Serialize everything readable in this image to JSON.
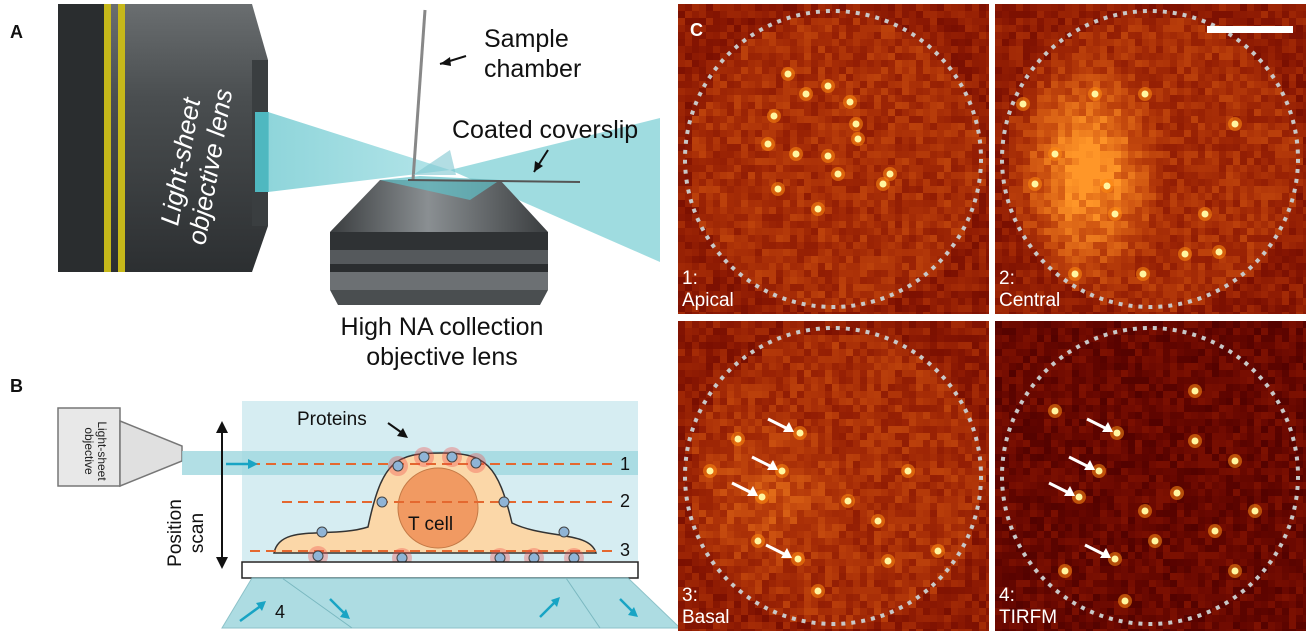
{
  "panels": {
    "a": {
      "letter": "A",
      "light_sheet_objective": [
        "Light-sheet",
        "objective lens"
      ],
      "sample_chamber": [
        "Sample",
        "chamber"
      ],
      "coated_coverslip": "Coated coverslip",
      "collection_objective": [
        "High NA collection",
        "objective lens"
      ]
    },
    "b": {
      "letter": "B",
      "objective_label": [
        "Light-sheet",
        "objective"
      ],
      "proteins": "Proteins",
      "t_cell": "T cell",
      "position_scan": [
        "Position",
        "scan"
      ],
      "planes": [
        "1",
        "2",
        "3"
      ],
      "tirf_plane": "4"
    },
    "c": {
      "letter": "C",
      "tiles": [
        {
          "number": "1:",
          "name": "Apical",
          "arrows": 0
        },
        {
          "number": "2:",
          "name": "Central",
          "arrows": 0
        },
        {
          "number": "3:",
          "name": "Basal",
          "arrows": 4
        },
        {
          "number": "4:",
          "name": "TIRFM",
          "arrows": 4
        }
      ]
    }
  },
  "colors": {
    "lightsheet": "#7fd0d6",
    "dashed_plane": "#e4682f",
    "cell_fill": "#fbd7a8",
    "nucleus": "#f19a62",
    "protein_glow": "#f04a48",
    "protein": "#8fb4d6",
    "arrow_cyan": "#18a4c4",
    "hot_dark": "#5a0a00",
    "hot_mid": "#c02000",
    "hot_bright": "#ffd040",
    "circle_dash": "#c8c8c8"
  }
}
